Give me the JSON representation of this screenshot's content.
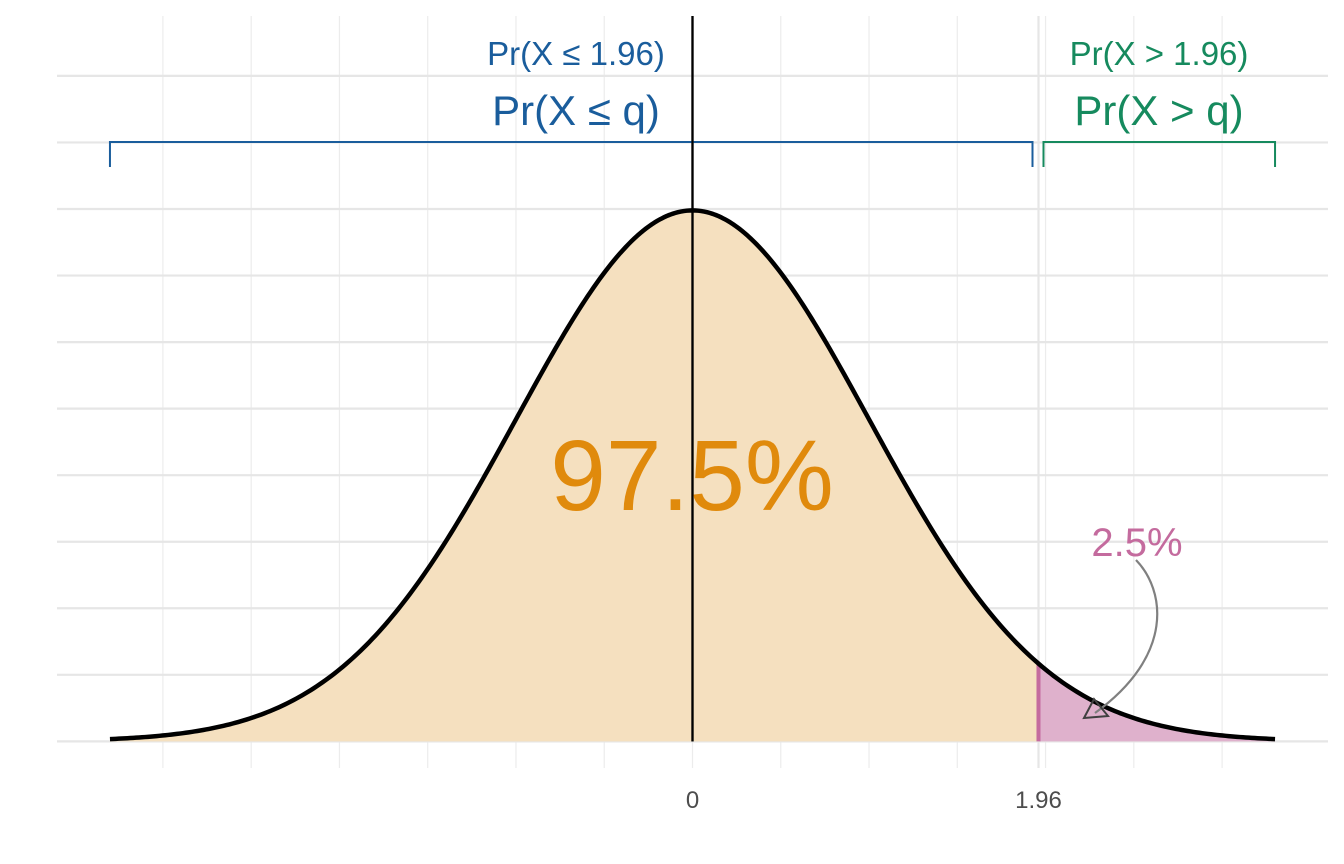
{
  "chart_data": {
    "type": "area",
    "distribution": "standard normal density",
    "x": [
      -3.3,
      -3.0,
      -2.7,
      -2.4,
      -2.1,
      -1.8,
      -1.5,
      -1.2,
      -0.9,
      -0.6,
      -0.3,
      0.0,
      0.3,
      0.6,
      0.9,
      1.2,
      1.5,
      1.8,
      1.96,
      2.1,
      2.4,
      2.7,
      3.0,
      3.3
    ],
    "y": [
      0.0017,
      0.0044,
      0.0104,
      0.0224,
      0.044,
      0.079,
      0.1295,
      0.1942,
      0.2661,
      0.3332,
      0.3814,
      0.3989,
      0.3814,
      0.3332,
      0.2661,
      0.1942,
      0.1295,
      0.079,
      0.0584,
      0.044,
      0.0224,
      0.0104,
      0.0044,
      0.0017
    ],
    "xlim": [
      -3.6,
      3.6
    ],
    "ylim": [
      -0.02,
      0.545
    ],
    "x_ticks": [
      0,
      1.96
    ],
    "x_tick_labels": [
      "0",
      "1.96"
    ],
    "quantile": 1.96,
    "grid": true,
    "regions": [
      {
        "from": -3.3,
        "to": 1.96,
        "fill": "#f5e0bf",
        "label": "97.5%",
        "label_color": "#e08a0c"
      },
      {
        "from": 1.96,
        "to": 3.3,
        "fill": "#dfb1cc",
        "edge_color": "#c46b9e",
        "label": "2.5%",
        "label_color": "#c46b9e"
      }
    ],
    "brackets": [
      {
        "from": -3.3,
        "to": 1.96,
        "label": "Pr(X ≤ q)",
        "sublabel": "Pr(X ≤ 1.96)",
        "color": "#1a5d9c"
      },
      {
        "from": 1.96,
        "to": 3.3,
        "label": "Pr(X > q)",
        "sublabel": "Pr(X > 1.96)",
        "color": "#168a5e"
      }
    ],
    "vline_x": 0,
    "curve_color": "#000000",
    "arrow_color": "#808080"
  }
}
